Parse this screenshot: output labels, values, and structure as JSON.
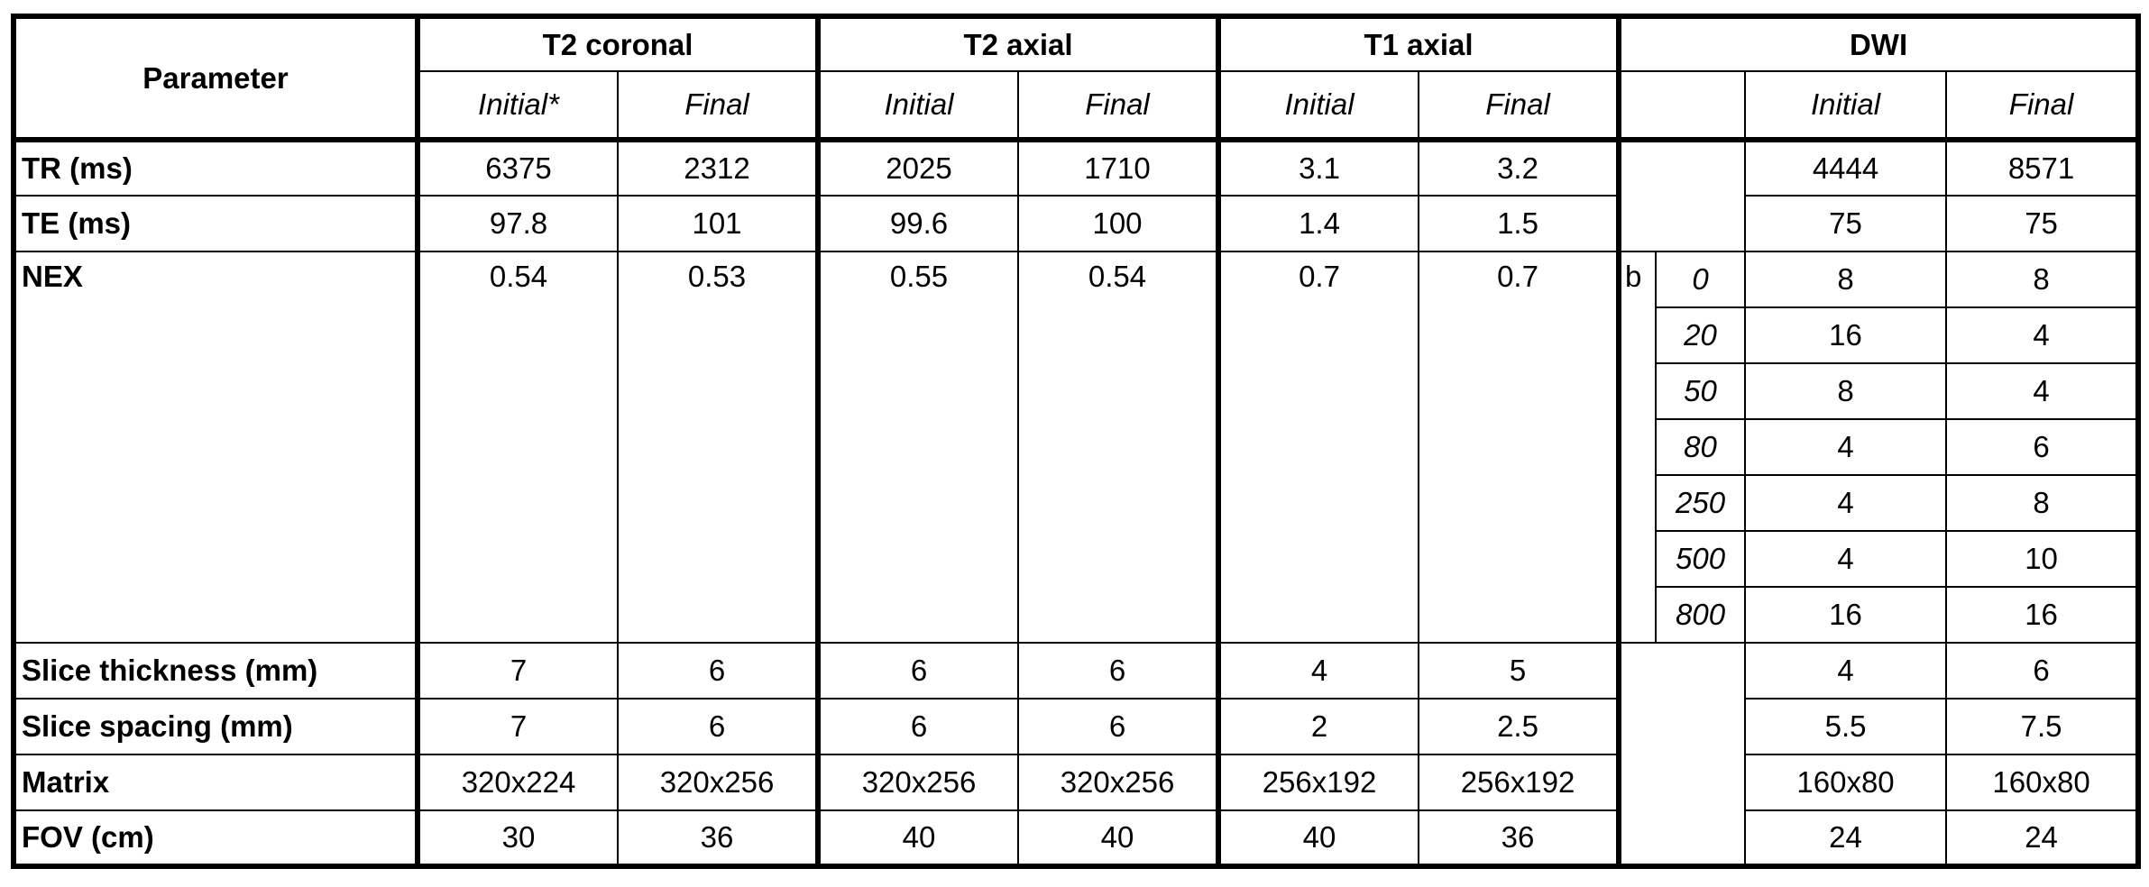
{
  "table": {
    "header": {
      "parameter": "Parameter",
      "groups": [
        "T2 coronal",
        "T2 axial",
        "T1 axial",
        "DWI"
      ],
      "subheaders": [
        "Initial*",
        "Final",
        "Initial",
        "Final",
        "Initial",
        "Final",
        "Initial",
        "Final"
      ]
    },
    "rows_top": [
      {
        "label": "TR (ms)",
        "values": [
          6375,
          2312,
          2025,
          1710,
          3.1,
          3.2,
          4444,
          8571
        ]
      },
      {
        "label": "TE (ms)",
        "values": [
          97.8,
          101,
          99.6,
          100,
          1.4,
          1.5,
          75,
          75
        ]
      }
    ],
    "nex": {
      "label": "NEX",
      "values": [
        0.54,
        0.53,
        0.55,
        0.54,
        0.7,
        0.7
      ],
      "b_label": "b",
      "b_rows": [
        {
          "b": 0,
          "initial": 8,
          "final": 8
        },
        {
          "b": 20,
          "initial": 16,
          "final": 4
        },
        {
          "b": 50,
          "initial": 8,
          "final": 4
        },
        {
          "b": 80,
          "initial": 4,
          "final": 6
        },
        {
          "b": 250,
          "initial": 4,
          "final": 8
        },
        {
          "b": 500,
          "initial": 4,
          "final": 10
        },
        {
          "b": 800,
          "initial": 16,
          "final": 16
        }
      ]
    },
    "rows_bottom": [
      {
        "label": "Slice thickness (mm)",
        "values": [
          7,
          6,
          6,
          6,
          4,
          5,
          4,
          6
        ]
      },
      {
        "label": "Slice spacing (mm)",
        "values": [
          7,
          6,
          6,
          6,
          2,
          2.5,
          5.5,
          7.5
        ]
      },
      {
        "label": "Matrix",
        "values": [
          "320x224",
          "320x256",
          "320x256",
          "320x256",
          "256x192",
          "256x192",
          "160x80",
          "160x80"
        ]
      },
      {
        "label": "FOV (cm)",
        "values": [
          30,
          36,
          40,
          40,
          40,
          36,
          24,
          24
        ]
      }
    ]
  }
}
